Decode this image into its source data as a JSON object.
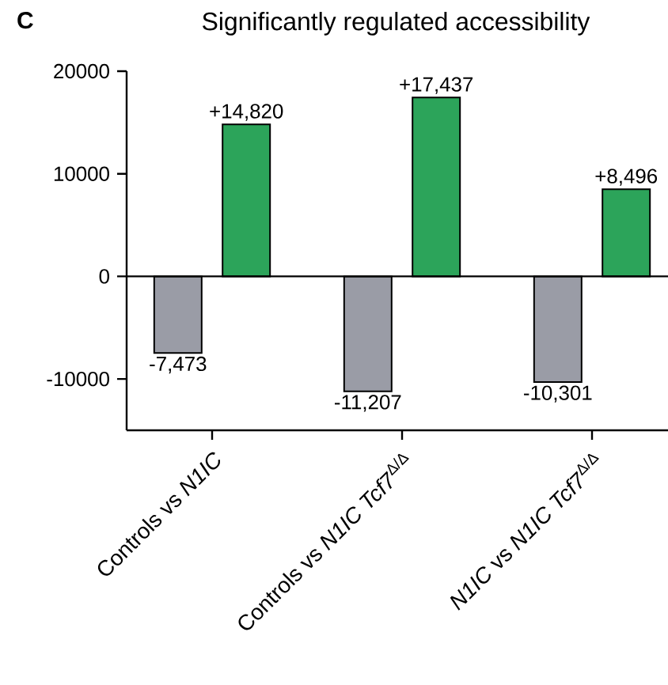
{
  "chart_data": {
    "type": "bar",
    "title": "Significantly regulated accessibility",
    "annotations": [
      "C"
    ],
    "categories": [
      "Controls vs *N1IC*",
      "Controls vs *N1IC Tcf7*$^{Δ/Δ}$",
      "*N1IC* vs *N1IC Tcf7*$^{Δ/Δ}$"
    ],
    "series": [
      {
        "color": "#9a9ca6",
        "values": [
          -7473,
          -11207,
          -10301
        ],
        "value_labels": [
          "-7,473",
          "-11,207",
          "-10,301"
        ]
      },
      {
        "color": "#2ca45a",
        "values": [
          14820,
          17437,
          8496
        ],
        "value_labels": [
          "+14,820",
          "+17,437",
          "+8,496"
        ]
      }
    ],
    "ylim": [
      -15000,
      20000
    ],
    "yticks": [
      -10000,
      0,
      10000,
      20000
    ],
    "ref_lines": [
      {
        "axis": "y",
        "value": 0
      }
    ],
    "grid": false
  }
}
